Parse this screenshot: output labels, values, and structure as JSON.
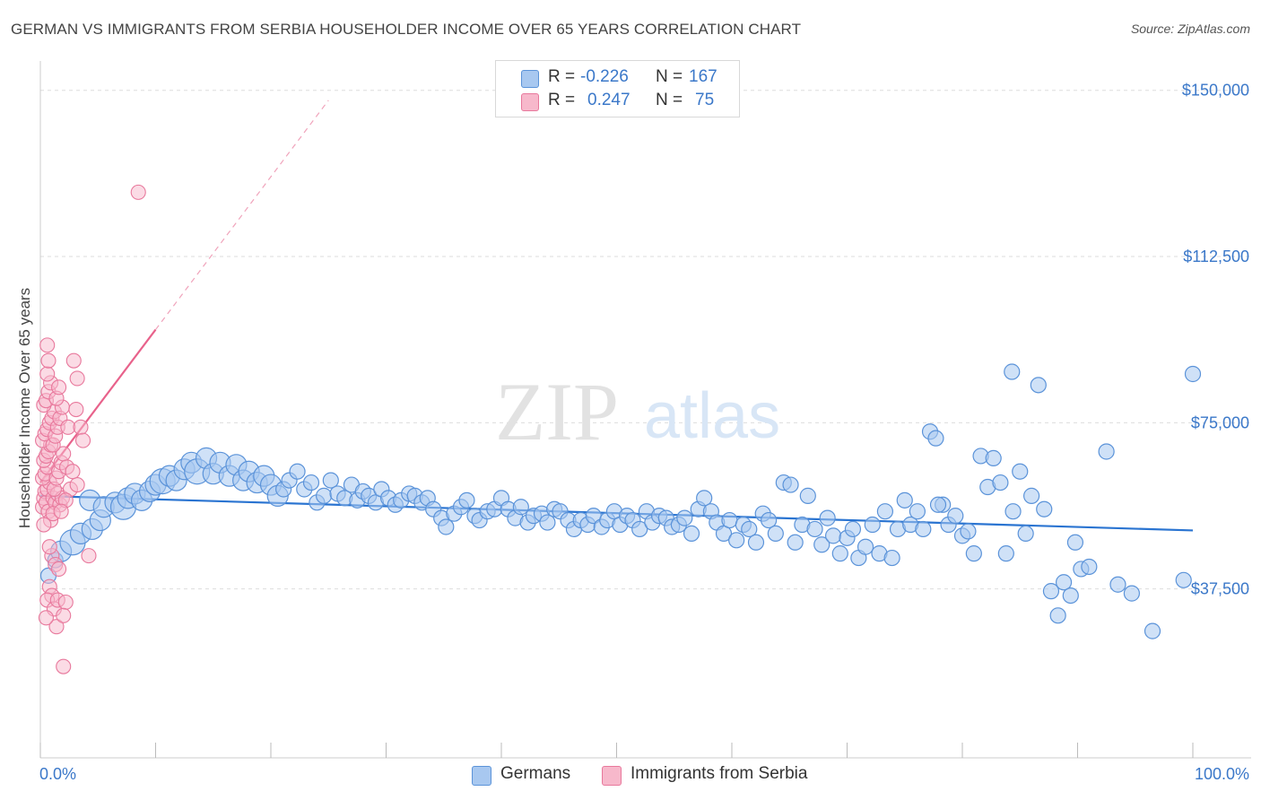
{
  "title": "GERMAN VS IMMIGRANTS FROM SERBIA HOUSEHOLDER INCOME OVER 65 YEARS CORRELATION CHART",
  "source": "Source: ZipAtlas.com",
  "watermark": {
    "zip": "ZIP",
    "atlas": "atlas"
  },
  "legend": {
    "rows": [
      {
        "r_label": "R =",
        "r_value": "-0.226",
        "n_label": "N =",
        "n_value": "167",
        "color": "#a8c8f0"
      },
      {
        "r_label": "R =",
        "r_value": "0.247",
        "n_label": "N =",
        "n_value": "75",
        "color": "#f7b8cb"
      }
    ]
  },
  "bottom_legend": {
    "germans": "Germans",
    "serbia": "Immigrants from Serbia"
  },
  "colors": {
    "blue_fill": "#a8c8f0",
    "blue_stroke": "#5b93d9",
    "blue_line": "#2a74d1",
    "pink_fill": "#f7b8cb",
    "pink_stroke": "#e8789c",
    "pink_line": "#e8628b",
    "grid": "#dddddd",
    "axis_text": "#3b78c9"
  },
  "chart_data": {
    "type": "scatter",
    "title": "GERMAN VS IMMIGRANTS FROM SERBIA HOUSEHOLDER INCOME OVER 65 YEARS CORRELATION CHART",
    "xlabel": "",
    "ylabel": "Householder Income Over 65 years",
    "xlim": [
      0,
      100
    ],
    "ylim": [
      0,
      155000
    ],
    "x_tick_labels": [
      "0.0%",
      "100.0%"
    ],
    "y_ticks": [
      37500,
      75000,
      112500,
      150000
    ],
    "y_tick_labels": [
      "$37,500",
      "$75,000",
      "$112,500",
      "$150,000"
    ],
    "series": [
      {
        "name": "Germans",
        "R": -0.226,
        "N": 167,
        "trend": {
          "x0": 0,
          "y0": 58500,
          "x1": 100,
          "y1": 50700,
          "dashed_x1": null
        },
        "points": [
          [
            0.7,
            40500,
            1
          ],
          [
            1.3,
            44000,
            1
          ],
          [
            1.8,
            46000,
            2
          ],
          [
            2.8,
            48000,
            3
          ],
          [
            3.5,
            50000,
            2
          ],
          [
            4.5,
            51000,
            2
          ],
          [
            5.2,
            53000,
            2
          ],
          [
            4.3,
            57500,
            2
          ],
          [
            5.5,
            56000,
            2
          ],
          [
            6.5,
            57000,
            2
          ],
          [
            7.2,
            56000,
            3
          ],
          [
            7.6,
            58000,
            2
          ],
          [
            8.2,
            59000,
            2
          ],
          [
            8.8,
            57500,
            2
          ],
          [
            9.5,
            59500,
            2
          ],
          [
            10.0,
            61000,
            2
          ],
          [
            10.6,
            61800,
            3
          ],
          [
            11.2,
            63000,
            2
          ],
          [
            11.8,
            62000,
            2
          ],
          [
            12.5,
            64500,
            2
          ],
          [
            13.1,
            66000,
            2
          ],
          [
            13.6,
            64000,
            3
          ],
          [
            14.4,
            67000,
            2
          ],
          [
            15.0,
            63500,
            2
          ],
          [
            15.6,
            66000,
            2
          ],
          [
            16.4,
            63000,
            2
          ],
          [
            17.0,
            65500,
            2
          ],
          [
            17.6,
            62000,
            2
          ],
          [
            18.1,
            64000,
            2
          ],
          [
            18.8,
            61500,
            2
          ],
          [
            19.4,
            63000,
            2
          ],
          [
            20.0,
            61000,
            2
          ],
          [
            20.6,
            58500,
            2
          ],
          [
            21.1,
            60000,
            1
          ],
          [
            21.6,
            62000,
            1
          ],
          [
            22.3,
            64000,
            1
          ],
          [
            22.9,
            60000,
            1
          ],
          [
            23.5,
            61500,
            1
          ],
          [
            24.0,
            57000,
            1
          ],
          [
            24.6,
            58500,
            1
          ],
          [
            25.2,
            62000,
            1
          ],
          [
            25.8,
            59000,
            1
          ],
          [
            26.4,
            58000,
            1
          ],
          [
            27.0,
            61000,
            1
          ],
          [
            27.5,
            57500,
            1
          ],
          [
            28.0,
            59500,
            1
          ],
          [
            28.5,
            58500,
            1
          ],
          [
            29.1,
            57000,
            1
          ],
          [
            29.6,
            60000,
            1
          ],
          [
            30.2,
            58000,
            1
          ],
          [
            30.8,
            56500,
            1
          ],
          [
            31.3,
            57500,
            1
          ],
          [
            32.0,
            59000,
            1
          ],
          [
            32.5,
            58500,
            1
          ],
          [
            33.1,
            57000,
            1
          ],
          [
            33.6,
            58000,
            1
          ],
          [
            34.1,
            55500,
            1
          ],
          [
            34.8,
            53500,
            1
          ],
          [
            35.2,
            51500,
            1
          ],
          [
            35.9,
            54500,
            1
          ],
          [
            36.5,
            56000,
            1
          ],
          [
            37.0,
            57500,
            1
          ],
          [
            37.7,
            54000,
            1
          ],
          [
            38.1,
            53000,
            1
          ],
          [
            38.8,
            55000,
            1
          ],
          [
            39.4,
            55500,
            1
          ],
          [
            40.0,
            58000,
            1
          ],
          [
            40.6,
            55500,
            1
          ],
          [
            41.2,
            53500,
            1
          ],
          [
            41.7,
            56000,
            1
          ],
          [
            42.3,
            52500,
            1
          ],
          [
            42.8,
            54000,
            1
          ],
          [
            43.5,
            54500,
            1
          ],
          [
            44.0,
            52500,
            1
          ],
          [
            44.6,
            55500,
            1
          ],
          [
            45.1,
            55000,
            1
          ],
          [
            45.8,
            53000,
            1
          ],
          [
            46.3,
            51000,
            1
          ],
          [
            46.9,
            53000,
            1
          ],
          [
            47.5,
            52000,
            1
          ],
          [
            48.0,
            54000,
            1
          ],
          [
            48.7,
            51500,
            1
          ],
          [
            49.2,
            53000,
            1
          ],
          [
            49.8,
            55000,
            1
          ],
          [
            50.3,
            52000,
            1
          ],
          [
            50.9,
            54000,
            1
          ],
          [
            51.4,
            53000,
            1
          ],
          [
            52.0,
            51000,
            1
          ],
          [
            52.6,
            55000,
            1
          ],
          [
            53.1,
            52500,
            1
          ],
          [
            53.7,
            54000,
            1
          ],
          [
            54.3,
            53500,
            1
          ],
          [
            54.8,
            51500,
            1
          ],
          [
            55.4,
            52000,
            1
          ],
          [
            55.9,
            53500,
            1
          ],
          [
            56.5,
            50000,
            1
          ],
          [
            57.1,
            55500,
            1
          ],
          [
            57.6,
            58000,
            1
          ],
          [
            58.2,
            55000,
            1
          ],
          [
            58.7,
            52500,
            1
          ],
          [
            59.3,
            50000,
            1
          ],
          [
            59.8,
            53000,
            1
          ],
          [
            60.4,
            48500,
            1
          ],
          [
            61.0,
            52000,
            1
          ],
          [
            61.5,
            51000,
            1
          ],
          [
            62.1,
            48000,
            1
          ],
          [
            62.7,
            54500,
            1
          ],
          [
            63.2,
            53000,
            1
          ],
          [
            63.8,
            50000,
            1
          ],
          [
            64.5,
            61500,
            1
          ],
          [
            65.1,
            61000,
            1
          ],
          [
            65.5,
            48000,
            1
          ],
          [
            66.1,
            52000,
            1
          ],
          [
            66.6,
            58500,
            1
          ],
          [
            67.2,
            51000,
            1
          ],
          [
            67.8,
            47500,
            1
          ],
          [
            68.3,
            53500,
            1
          ],
          [
            68.8,
            49500,
            1
          ],
          [
            69.4,
            45500,
            1
          ],
          [
            70.0,
            49000,
            1
          ],
          [
            70.5,
            51000,
            1
          ],
          [
            71.0,
            44500,
            1
          ],
          [
            71.6,
            47000,
            1
          ],
          [
            72.2,
            52000,
            1
          ],
          [
            72.8,
            45500,
            1
          ],
          [
            73.3,
            55000,
            1
          ],
          [
            73.9,
            44500,
            1
          ],
          [
            74.4,
            51000,
            1
          ],
          [
            75.0,
            57500,
            1
          ],
          [
            75.5,
            52000,
            1
          ],
          [
            76.1,
            55000,
            1
          ],
          [
            76.6,
            51000,
            1
          ],
          [
            77.2,
            73000,
            1
          ],
          [
            77.7,
            71500,
            1
          ],
          [
            78.3,
            56500,
            1
          ],
          [
            78.8,
            52000,
            1
          ],
          [
            79.4,
            54000,
            1
          ],
          [
            80.0,
            49500,
            1
          ],
          [
            80.5,
            50500,
            1
          ],
          [
            81.0,
            45500,
            1
          ],
          [
            81.6,
            67500,
            1
          ],
          [
            82.2,
            60500,
            1
          ],
          [
            82.7,
            67000,
            1
          ],
          [
            83.3,
            61500,
            1
          ],
          [
            83.8,
            45500,
            1
          ],
          [
            84.4,
            55000,
            1
          ],
          [
            85.0,
            64000,
            1
          ],
          [
            85.5,
            50000,
            1
          ],
          [
            86.0,
            58500,
            1
          ],
          [
            86.6,
            83500,
            1
          ],
          [
            87.1,
            55500,
            1
          ],
          [
            87.7,
            37000,
            1
          ],
          [
            88.3,
            31500,
            1
          ],
          [
            88.8,
            39000,
            1
          ],
          [
            89.4,
            36000,
            1
          ],
          [
            89.8,
            48000,
            1
          ],
          [
            90.3,
            42000,
            1
          ],
          [
            91.0,
            42500,
            1
          ],
          [
            92.5,
            68500,
            1
          ],
          [
            93.5,
            38500,
            1
          ],
          [
            94.7,
            36500,
            1
          ],
          [
            96.5,
            28000,
            1
          ],
          [
            99.2,
            39500,
            1
          ],
          [
            100.0,
            86000,
            1
          ],
          [
            84.3,
            86500,
            1
          ],
          [
            77.9,
            56500,
            1
          ]
        ]
      },
      {
        "name": "Immigrants from Serbia",
        "R": 0.247,
        "N": 75,
        "trend": {
          "x0": 0,
          "y0": 61500,
          "x1": 10,
          "y1": 96000,
          "dashed_x1": 25
        },
        "points": [
          [
            0.2,
            56000
          ],
          [
            0.3,
            58000
          ],
          [
            0.4,
            59500
          ],
          [
            0.5,
            57000
          ],
          [
            0.6,
            60000
          ],
          [
            0.7,
            55000
          ],
          [
            0.8,
            61500
          ],
          [
            0.2,
            62500
          ],
          [
            0.4,
            63500
          ],
          [
            0.6,
            65000
          ],
          [
            0.3,
            66500
          ],
          [
            0.5,
            67500
          ],
          [
            0.7,
            68500
          ],
          [
            0.9,
            70000
          ],
          [
            0.2,
            71000
          ],
          [
            0.4,
            72500
          ],
          [
            0.6,
            73500
          ],
          [
            0.8,
            75000
          ],
          [
            1.0,
            76000
          ],
          [
            1.2,
            77500
          ],
          [
            0.3,
            79000
          ],
          [
            0.5,
            80000
          ],
          [
            0.7,
            82000
          ],
          [
            0.9,
            84000
          ],
          [
            0.6,
            86000
          ],
          [
            0.7,
            89000
          ],
          [
            0.6,
            92500
          ],
          [
            1.1,
            58000
          ],
          [
            1.3,
            57000
          ],
          [
            1.5,
            59000
          ],
          [
            1.7,
            56500
          ],
          [
            1.9,
            58000
          ],
          [
            1.2,
            60000
          ],
          [
            1.4,
            62500
          ],
          [
            1.6,
            64000
          ],
          [
            1.8,
            66000
          ],
          [
            2.0,
            68000
          ],
          [
            1.1,
            70000
          ],
          [
            1.3,
            72000
          ],
          [
            1.5,
            74000
          ],
          [
            1.7,
            76000
          ],
          [
            1.9,
            78500
          ],
          [
            1.4,
            80500
          ],
          [
            1.6,
            83000
          ],
          [
            2.3,
            65000
          ],
          [
            2.6,
            60000
          ],
          [
            2.2,
            57500
          ],
          [
            2.4,
            74000
          ],
          [
            2.9,
            89000
          ],
          [
            3.1,
            78000
          ],
          [
            3.2,
            85000
          ],
          [
            3.5,
            74000
          ],
          [
            3.7,
            71000
          ],
          [
            3.2,
            61000
          ],
          [
            2.8,
            64000
          ],
          [
            4.2,
            45000
          ],
          [
            1.0,
            45000
          ],
          [
            1.3,
            43000
          ],
          [
            1.6,
            42000
          ],
          [
            0.8,
            38000
          ],
          [
            1.0,
            36000
          ],
          [
            0.6,
            35000
          ],
          [
            1.2,
            33000
          ],
          [
            1.5,
            35000
          ],
          [
            2.2,
            34500
          ],
          [
            1.4,
            29000
          ],
          [
            2.0,
            31500
          ],
          [
            0.5,
            31000
          ],
          [
            2.0,
            20000
          ],
          [
            8.5,
            127000
          ],
          [
            0.9,
            53000
          ],
          [
            1.1,
            54500
          ],
          [
            1.8,
            55000
          ],
          [
            0.3,
            52000
          ],
          [
            0.8,
            47000
          ]
        ]
      }
    ]
  }
}
